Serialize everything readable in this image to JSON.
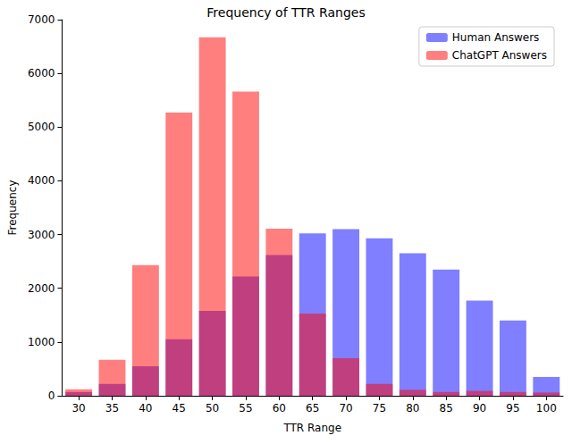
{
  "chart_data": {
    "type": "bar",
    "title": "Frequency of TTR Ranges",
    "x_label": "TTR Range",
    "y_label": "Frequency",
    "categories": [
      "30",
      "35",
      "40",
      "45",
      "50",
      "55",
      "60",
      "65",
      "70",
      "75",
      "80",
      "85",
      "90",
      "95",
      "100"
    ],
    "series": [
      {
        "name": "Human Answers",
        "color": "#0000ff",
        "values": [
          70,
          220,
          550,
          1050,
          1580,
          2220,
          2620,
          3020,
          3100,
          2930,
          2650,
          2350,
          1770,
          1400,
          350
        ]
      },
      {
        "name": "ChatGPT Answers",
        "color": "#ff0000",
        "values": [
          120,
          670,
          2430,
          5270,
          6670,
          5660,
          3110,
          1530,
          700,
          220,
          110,
          70,
          90,
          70,
          60
        ]
      }
    ],
    "ylim": [
      0,
      7000
    ],
    "yticks": [
      0,
      1000,
      2000,
      3000,
      4000,
      5000,
      6000,
      7000
    ],
    "grid": false,
    "legend": "upper right"
  }
}
